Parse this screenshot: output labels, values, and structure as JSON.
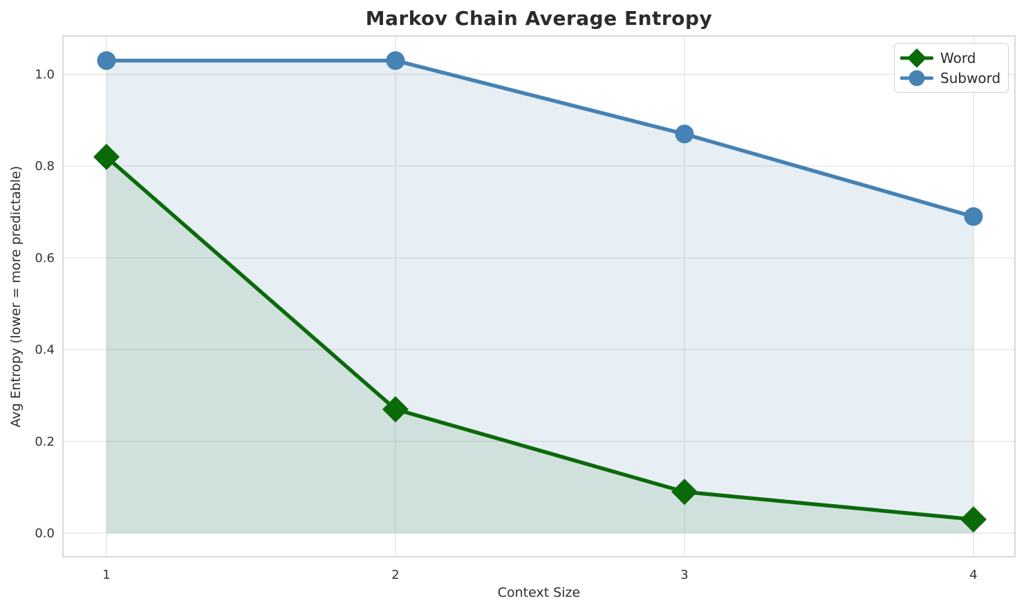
{
  "chart_data": {
    "type": "line",
    "title": "Markov Chain Average Entropy",
    "xlabel": "Context Size",
    "ylabel": "Avg Entropy (lower = more predictable)",
    "x": [
      1,
      2,
      3,
      4
    ],
    "xtick_labels": [
      "1",
      "2",
      "3",
      "4"
    ],
    "ytick_values": [
      0.0,
      0.2,
      0.4,
      0.6,
      0.8,
      1.0
    ],
    "ytick_labels": [
      "0.0",
      "0.2",
      "0.4",
      "0.6",
      "0.8",
      "1.0"
    ],
    "xlim": [
      0.85,
      4.14
    ],
    "ylim": [
      -0.05,
      1.08
    ],
    "grid": true,
    "legend_position": "upper right",
    "series": [
      {
        "name": "Word",
        "marker": "diamond",
        "color": "#0a6a0a",
        "fill_to_zero": true,
        "fill_alpha": 0.1,
        "values": [
          0.82,
          0.27,
          0.09,
          0.03
        ]
      },
      {
        "name": "Subword",
        "marker": "circle",
        "color": "#4682b4",
        "fill_to_zero": true,
        "fill_alpha": 0.13,
        "values": [
          1.03,
          1.03,
          0.87,
          0.69
        ]
      }
    ]
  },
  "colors": {
    "grid": "#e5e5e5",
    "frame": "#cccccc",
    "title_text": "#2b2b2b",
    "tick_text": "#333333",
    "background": "#ffffff"
  }
}
